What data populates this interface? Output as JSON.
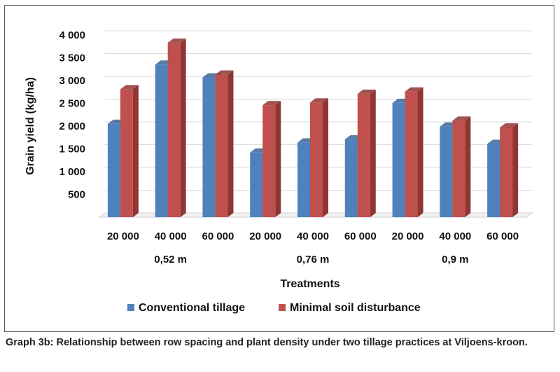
{
  "chart_data": {
    "type": "bar",
    "style": "3d-clustered-column",
    "categories": [
      "20 000",
      "40 000",
      "60 000",
      "20 000",
      "40 000",
      "60 000",
      "20 000",
      "40 000",
      "60 000"
    ],
    "groups": [
      {
        "label": "0,52 m",
        "span": [
          0,
          2
        ]
      },
      {
        "label": "0,76 m",
        "span": [
          3,
          5
        ]
      },
      {
        "label": "0,9 m",
        "span": [
          6,
          8
        ]
      }
    ],
    "series": [
      {
        "name": "Conventional tillage",
        "color": "#4f81bd",
        "shade": "#3a6696",
        "values": [
          2050,
          3350,
          3070,
          1420,
          1640,
          1710,
          2510,
          1990,
          1610
        ]
      },
      {
        "name": "Minimal soil disturbance",
        "color": "#c0504d",
        "shade": "#8f3533",
        "values": [
          2810,
          3830,
          3130,
          2460,
          2520,
          2710,
          2760,
          2120,
          1970
        ]
      }
    ],
    "ylabel": "Grain yield (kg/ha)",
    "xlabel": "Treatments",
    "ylim": [
      0,
      4000
    ],
    "yticks": [
      500,
      1000,
      1500,
      2000,
      2500,
      3000,
      3500,
      4000
    ],
    "ytick_labels": [
      "500",
      "1 000",
      "1 500",
      "2 000",
      "2 500",
      "3 000",
      "3 500",
      "4 000"
    ],
    "grid": true,
    "legend_position": "bottom"
  },
  "caption": "Graph 3b: Relationship between row spacing and plant density under two tillage practices at Viljoens-kroon."
}
